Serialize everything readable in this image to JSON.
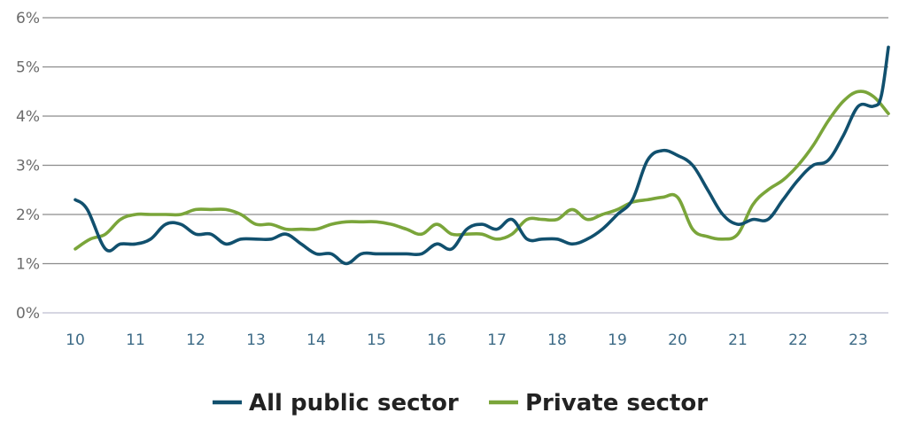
{
  "chart_data": {
    "type": "line",
    "title": "",
    "xlabel": "",
    "ylabel": "",
    "ylim": [
      0,
      6
    ],
    "xlim": [
      10,
      23.5
    ],
    "grid": true,
    "legend_position": "bottom-center",
    "y_ticks": [
      {
        "value": 0,
        "label": "0%"
      },
      {
        "value": 1,
        "label": "1%"
      },
      {
        "value": 2,
        "label": "2%"
      },
      {
        "value": 3,
        "label": "3%"
      },
      {
        "value": 4,
        "label": "4%"
      },
      {
        "value": 5,
        "label": "5%"
      },
      {
        "value": 6,
        "label": "6%"
      }
    ],
    "x_ticks": [
      {
        "value": 10,
        "label": "10"
      },
      {
        "value": 11,
        "label": "11"
      },
      {
        "value": 12,
        "label": "12"
      },
      {
        "value": 13,
        "label": "13"
      },
      {
        "value": 14,
        "label": "14"
      },
      {
        "value": 15,
        "label": "15"
      },
      {
        "value": 16,
        "label": "16"
      },
      {
        "value": 17,
        "label": "17"
      },
      {
        "value": 18,
        "label": "18"
      },
      {
        "value": 19,
        "label": "19"
      },
      {
        "value": 20,
        "label": "20"
      },
      {
        "value": 21,
        "label": "21"
      },
      {
        "value": 22,
        "label": "22"
      },
      {
        "value": 23,
        "label": "23"
      }
    ],
    "series": [
      {
        "name": "All public sector",
        "color": "#11506e",
        "points": [
          [
            10.0,
            2.3
          ],
          [
            10.2,
            2.1
          ],
          [
            10.5,
            1.3
          ],
          [
            10.75,
            1.4
          ],
          [
            11.0,
            1.4
          ],
          [
            11.25,
            1.5
          ],
          [
            11.5,
            1.8
          ],
          [
            11.75,
            1.8
          ],
          [
            12.0,
            1.6
          ],
          [
            12.25,
            1.6
          ],
          [
            12.5,
            1.4
          ],
          [
            12.75,
            1.5
          ],
          [
            13.0,
            1.5
          ],
          [
            13.25,
            1.5
          ],
          [
            13.5,
            1.6
          ],
          [
            13.75,
            1.4
          ],
          [
            14.0,
            1.2
          ],
          [
            14.25,
            1.2
          ],
          [
            14.5,
            1.0
          ],
          [
            14.75,
            1.2
          ],
          [
            15.0,
            1.2
          ],
          [
            15.25,
            1.2
          ],
          [
            15.5,
            1.2
          ],
          [
            15.75,
            1.2
          ],
          [
            16.0,
            1.4
          ],
          [
            16.25,
            1.3
          ],
          [
            16.5,
            1.7
          ],
          [
            16.75,
            1.8
          ],
          [
            17.0,
            1.7
          ],
          [
            17.25,
            1.9
          ],
          [
            17.5,
            1.5
          ],
          [
            17.75,
            1.5
          ],
          [
            18.0,
            1.5
          ],
          [
            18.25,
            1.4
          ],
          [
            18.5,
            1.5
          ],
          [
            18.75,
            1.7
          ],
          [
            19.0,
            2.0
          ],
          [
            19.25,
            2.3
          ],
          [
            19.5,
            3.1
          ],
          [
            19.75,
            3.3
          ],
          [
            20.0,
            3.2
          ],
          [
            20.25,
            3.0
          ],
          [
            20.5,
            2.5
          ],
          [
            20.75,
            2.0
          ],
          [
            21.0,
            1.8
          ],
          [
            21.25,
            1.9
          ],
          [
            21.5,
            1.9
          ],
          [
            21.75,
            2.3
          ],
          [
            22.0,
            2.7
          ],
          [
            22.25,
            3.0
          ],
          [
            22.5,
            3.1
          ],
          [
            22.75,
            3.6
          ],
          [
            23.0,
            4.2
          ],
          [
            23.25,
            4.2
          ],
          [
            23.38,
            4.4
          ],
          [
            23.5,
            5.4
          ]
        ]
      },
      {
        "name": "Private sector",
        "color": "#7aa53a",
        "points": [
          [
            10.0,
            1.3
          ],
          [
            10.25,
            1.5
          ],
          [
            10.5,
            1.6
          ],
          [
            10.75,
            1.9
          ],
          [
            11.0,
            2.0
          ],
          [
            11.25,
            2.0
          ],
          [
            11.5,
            2.0
          ],
          [
            11.75,
            2.0
          ],
          [
            12.0,
            2.1
          ],
          [
            12.25,
            2.1
          ],
          [
            12.5,
            2.1
          ],
          [
            12.75,
            2.0
          ],
          [
            13.0,
            1.8
          ],
          [
            13.25,
            1.8
          ],
          [
            13.5,
            1.7
          ],
          [
            13.75,
            1.7
          ],
          [
            14.0,
            1.7
          ],
          [
            14.25,
            1.8
          ],
          [
            14.5,
            1.85
          ],
          [
            14.75,
            1.85
          ],
          [
            15.0,
            1.85
          ],
          [
            15.25,
            1.8
          ],
          [
            15.5,
            1.7
          ],
          [
            15.75,
            1.6
          ],
          [
            16.0,
            1.8
          ],
          [
            16.25,
            1.6
          ],
          [
            16.5,
            1.6
          ],
          [
            16.75,
            1.6
          ],
          [
            17.0,
            1.5
          ],
          [
            17.25,
            1.6
          ],
          [
            17.5,
            1.9
          ],
          [
            17.75,
            1.9
          ],
          [
            18.0,
            1.9
          ],
          [
            18.25,
            2.1
          ],
          [
            18.5,
            1.9
          ],
          [
            18.75,
            2.0
          ],
          [
            19.0,
            2.1
          ],
          [
            19.25,
            2.25
          ],
          [
            19.5,
            2.3
          ],
          [
            19.75,
            2.35
          ],
          [
            20.0,
            2.35
          ],
          [
            20.25,
            1.7
          ],
          [
            20.5,
            1.55
          ],
          [
            20.75,
            1.5
          ],
          [
            21.0,
            1.6
          ],
          [
            21.25,
            2.2
          ],
          [
            21.5,
            2.5
          ],
          [
            21.75,
            2.7
          ],
          [
            22.0,
            3.0
          ],
          [
            22.25,
            3.4
          ],
          [
            22.5,
            3.9
          ],
          [
            22.75,
            4.3
          ],
          [
            23.0,
            4.5
          ],
          [
            23.25,
            4.4
          ],
          [
            23.5,
            4.05
          ]
        ]
      }
    ]
  }
}
